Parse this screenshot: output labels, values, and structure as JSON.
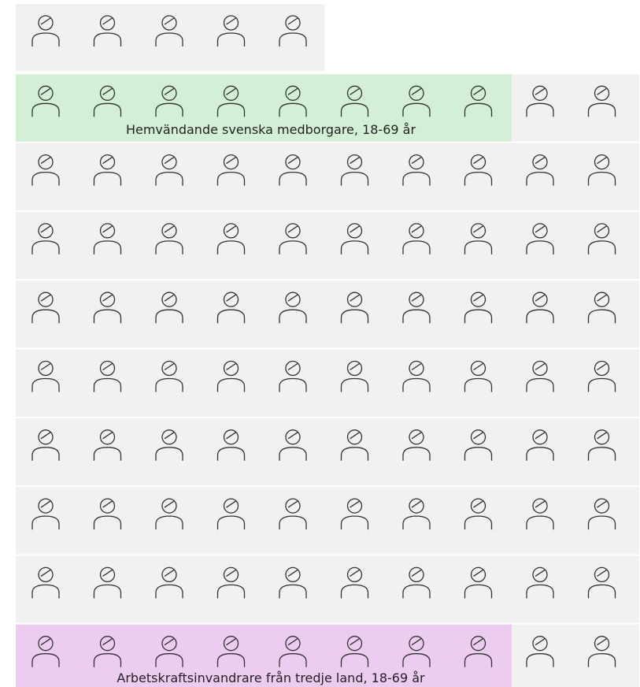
{
  "chart_data": {
    "type": "pictogram",
    "background": "#f1f1f1",
    "rows": [
      {
        "count": 5
      },
      {
        "count": 10,
        "highlight": 8,
        "color": "#d3efd6",
        "label": "Hemvändande svenska medborgare, 18-69 år"
      },
      {
        "count": 10
      },
      {
        "count": 10
      },
      {
        "count": 10
      },
      {
        "count": 10
      },
      {
        "count": 10
      },
      {
        "count": 10
      },
      {
        "count": 10
      },
      {
        "count": 10,
        "highlight": 8,
        "color": "#ecccef",
        "label": "Arbetskraftsinvandrare från tredje land, 18-69 år"
      }
    ]
  }
}
